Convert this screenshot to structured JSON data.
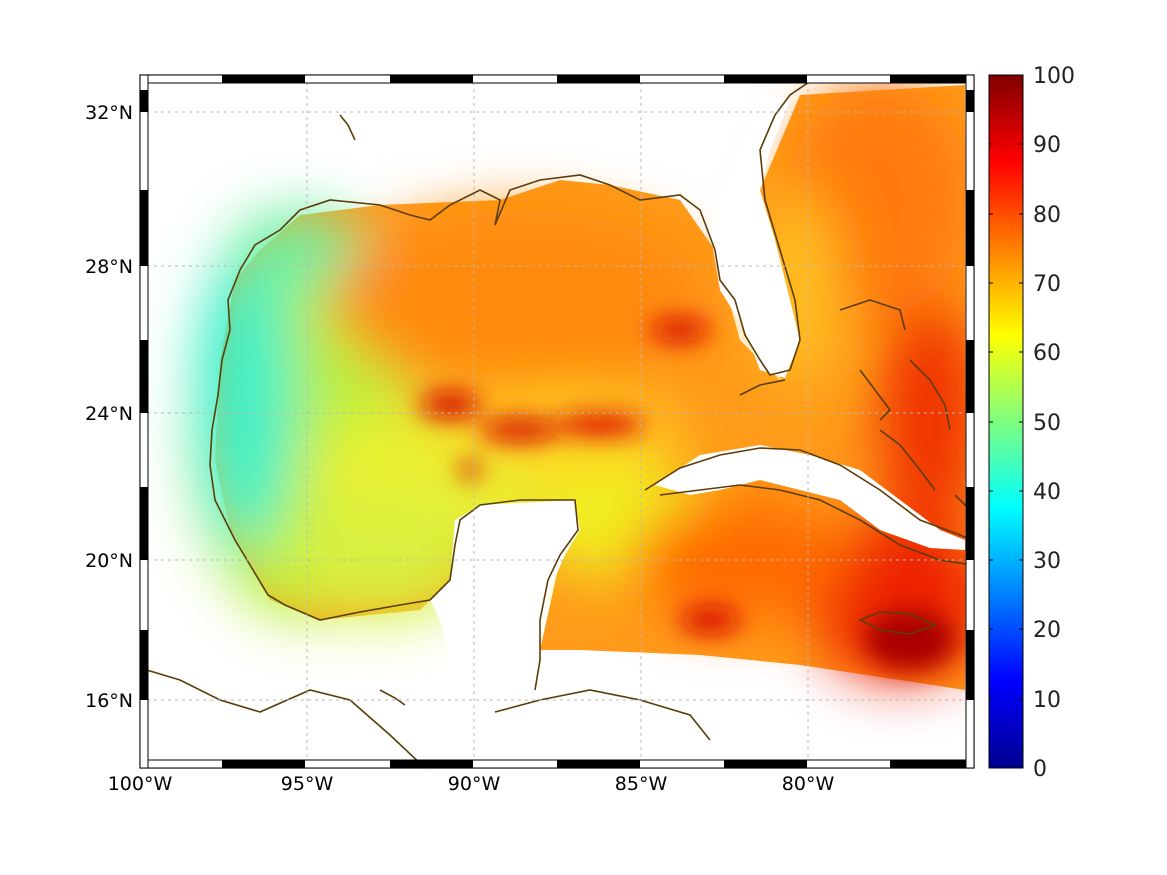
{
  "figure": {
    "x_ticks": [
      "100°W",
      "95°W",
      "90°W",
      "85°W",
      "80°W"
    ],
    "y_ticks": [
      "32°N",
      "28°N",
      "24°N",
      "20°N",
      "16°N"
    ],
    "colorbar": {
      "ticks": [
        "100",
        "90",
        "80",
        "70",
        "60",
        "50",
        "40",
        "30",
        "20",
        "10",
        "0"
      ],
      "range": [
        0,
        100
      ],
      "colormap": "jet"
    },
    "coast_color": "#5c3d0a"
  },
  "chart_data": {
    "type": "heatmap",
    "xlim": [
      -100,
      -75
    ],
    "ylim": [
      14,
      33
    ],
    "x_tick_values": [
      -100,
      -95,
      -90,
      -85,
      -80
    ],
    "y_tick_values": [
      32,
      28,
      24,
      20,
      16
    ],
    "grid": true,
    "colorbar_range": [
      0,
      100
    ],
    "approximate_field": [
      {
        "region": "western Gulf of Mexico",
        "value_range": [
          40,
          58
        ]
      },
      {
        "region": "central Gulf band near 24N",
        "value_range": [
          80,
          92
        ]
      },
      {
        "region": "northern and eastern Gulf",
        "value_range": [
          70,
          80
        ]
      },
      {
        "region": "Atlantic east of Florida",
        "value_range": [
          72,
          85
        ]
      },
      {
        "region": "Caribbean south of Cuba",
        "value_range": [
          75,
          95
        ]
      }
    ]
  }
}
